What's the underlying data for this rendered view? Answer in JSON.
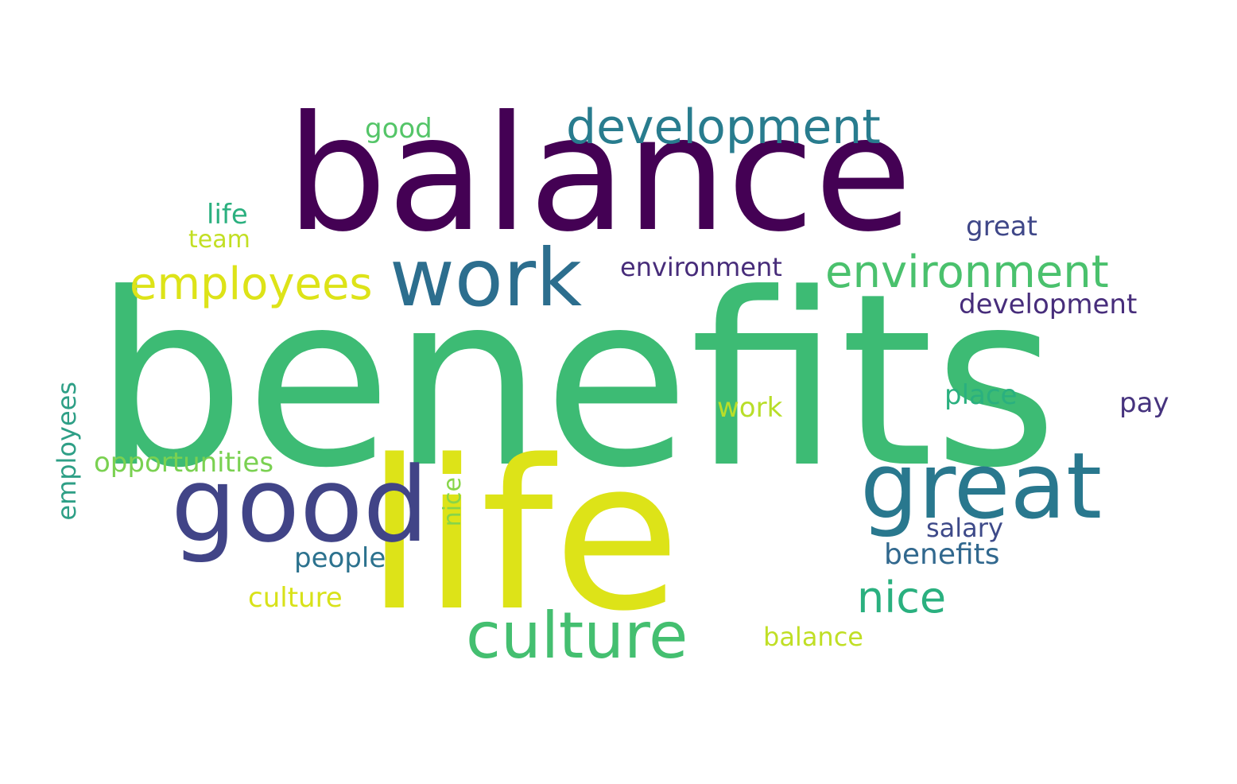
{
  "background": "#ffffff",
  "palette": [
    "#440154",
    "#3b528b",
    "#21918c",
    "#5ec962",
    "#fde725"
  ],
  "words": [
    {
      "text": "benefits",
      "color": "#3dbb74"
    },
    {
      "text": "balance",
      "color": "#440154"
    },
    {
      "text": "life",
      "color": "#dde318"
    },
    {
      "text": "good",
      "color": "#414487"
    },
    {
      "text": "great",
      "color": "#29788e"
    },
    {
      "text": "work",
      "color": "#2c6e8e"
    },
    {
      "text": "culture",
      "color": "#44bf70"
    },
    {
      "text": "development",
      "color": "#287c8e"
    },
    {
      "text": "environment",
      "color": "#4ac16d"
    },
    {
      "text": "employees",
      "color": "#dde318"
    },
    {
      "text": "development",
      "color": "#472d7b"
    },
    {
      "text": "environment",
      "color": "#472c7a"
    },
    {
      "text": "nice",
      "color": "#2ab07f"
    },
    {
      "text": "opportunities",
      "color": "#7ad151"
    },
    {
      "text": "employees",
      "color": "#2e9f86"
    },
    {
      "text": "people",
      "color": "#2c728e"
    },
    {
      "text": "benefits",
      "color": "#31688e"
    },
    {
      "text": "salary",
      "color": "#3e4a89"
    },
    {
      "text": "culture",
      "color": "#d8e219"
    },
    {
      "text": "balance",
      "color": "#c0df25"
    },
    {
      "text": "place",
      "color": "#2ab07f"
    },
    {
      "text": "good",
      "color": "#54c568"
    },
    {
      "text": "great",
      "color": "#3f4788"
    },
    {
      "text": "life",
      "color": "#2bb07f"
    },
    {
      "text": "team",
      "color": "#c2df23"
    },
    {
      "text": "pay",
      "color": "#46337e"
    },
    {
      "text": "work",
      "color": "#b8de29"
    },
    {
      "text": "nice",
      "color": "#87d549"
    }
  ]
}
